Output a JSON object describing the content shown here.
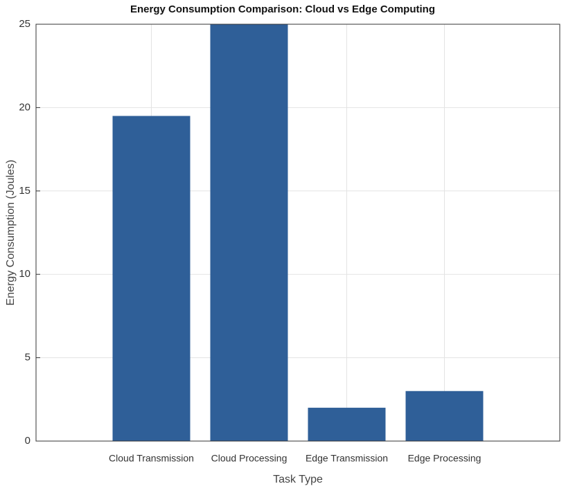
{
  "chart_data": {
    "type": "bar",
    "title": "Energy Consumption Comparison: Cloud vs Edge Computing",
    "x_label": "Task Type",
    "y_label": "Energy Consumption (Joules)",
    "categories": [
      "Cloud Transmission",
      "Cloud Processing",
      "Edge Transmission",
      "Edge Processing"
    ],
    "values": [
      19.5,
      25,
      2,
      3
    ],
    "color": "#2f5f98",
    "ylim": [
      0,
      25
    ],
    "yticks": [
      0,
      5,
      10,
      15,
      20,
      25
    ],
    "grid": true
  }
}
